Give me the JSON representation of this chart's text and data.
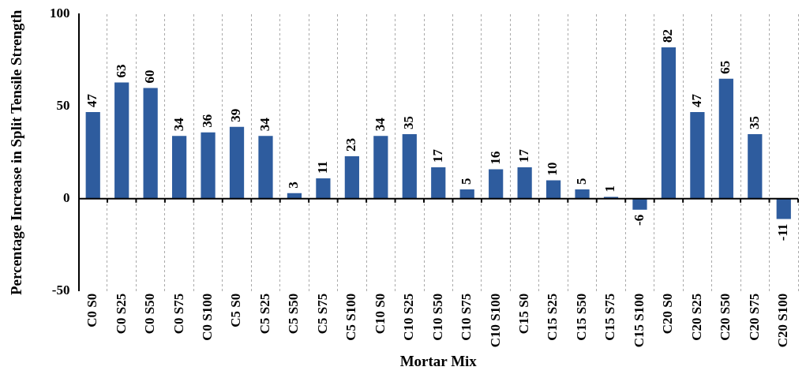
{
  "chart_data": {
    "type": "bar",
    "xlabel": "Mortar Mix",
    "ylabel": "Percentage Increase in Split Tensile Strength",
    "categories": [
      "C0 S0",
      "C0 S25",
      "C0 S50",
      "C0 S75",
      "C0 S100",
      "C5 S0",
      "C5 S25",
      "C5 S50",
      "C5 S75",
      "C5 S100",
      "C10 S0",
      "C10 S25",
      "C10 S50",
      "C10 S75",
      "C10 S100",
      "C15 S0",
      "C15 S25",
      "C15 S50",
      "C15 S75",
      "C15 S100",
      "C20 S0",
      "C20 S25",
      "C20 S50",
      "C20 S75",
      "C20 S100"
    ],
    "values": [
      47,
      63,
      60,
      34,
      36,
      39,
      34,
      3,
      11,
      23,
      34,
      35,
      17,
      5,
      16,
      17,
      10,
      5,
      1,
      -6,
      82,
      47,
      65,
      35,
      -11
    ],
    "color": "#2e5c9e",
    "ylim": [
      -50,
      100
    ],
    "yticks": [
      -50,
      0,
      50,
      100
    ],
    "grid": "x",
    "legend": false,
    "data_labels": true
  }
}
